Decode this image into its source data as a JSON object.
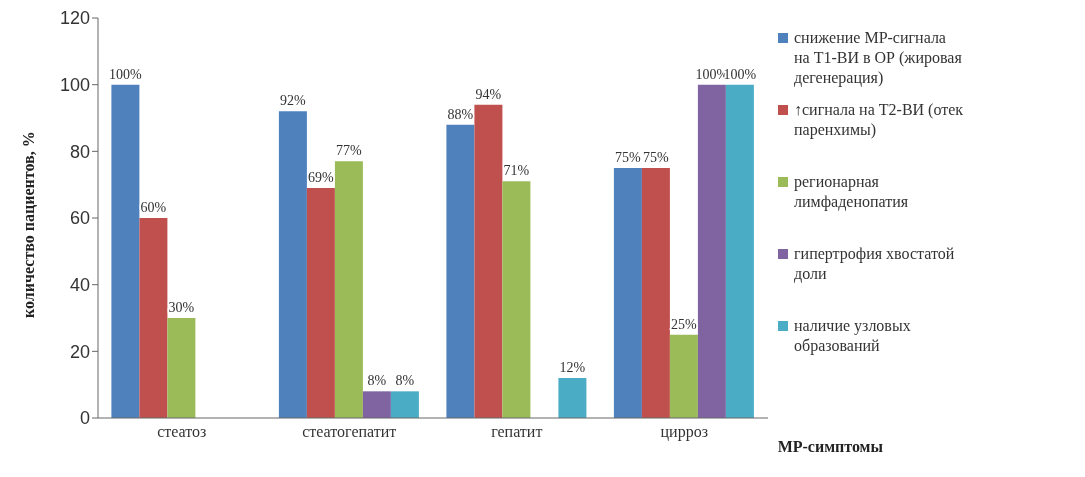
{
  "chart_data": {
    "type": "bar",
    "ylabel": "количество пациентов, %",
    "xlabel": "МР-симптомы",
    "categories": [
      "стеатоз",
      "стеатогепатит",
      "гепатит",
      "цирроз"
    ],
    "ylim": [
      0,
      120
    ],
    "yticks": [
      0,
      20,
      40,
      60,
      80,
      100,
      120
    ],
    "grid": false,
    "legend": "right",
    "series": [
      {
        "name": "снижение МР-сигнала на Т1-ВИ в ОР (жировая дегенерация)",
        "color": "#4f81bd",
        "values": [
          100,
          92,
          88,
          75
        ],
        "value_labels": [
          "100%",
          "92%",
          "88%",
          "75%"
        ]
      },
      {
        "name": "↑сигнала на Т2-ВИ (отек паренхимы)",
        "color": "#c0504d",
        "values": [
          60,
          69,
          94,
          75
        ],
        "value_labels": [
          "60%",
          "69%",
          "94%",
          "75%"
        ]
      },
      {
        "name": "регионарная лимфаденопатия",
        "color": "#9bbb59",
        "values": [
          30,
          77,
          71,
          25
        ],
        "value_labels": [
          "30%",
          "77%",
          "71%",
          "25%"
        ]
      },
      {
        "name": "гипертрофия хвостатой доли",
        "color": "#8064a2",
        "values": [
          null,
          8,
          null,
          100
        ],
        "value_labels": [
          null,
          "8%",
          null,
          "100%"
        ]
      },
      {
        "name": "наличие узловых образований",
        "color": "#4bacc6",
        "values": [
          null,
          8,
          12,
          100
        ],
        "value_labels": [
          null,
          "8%",
          "12%",
          "100%"
        ]
      }
    ]
  }
}
